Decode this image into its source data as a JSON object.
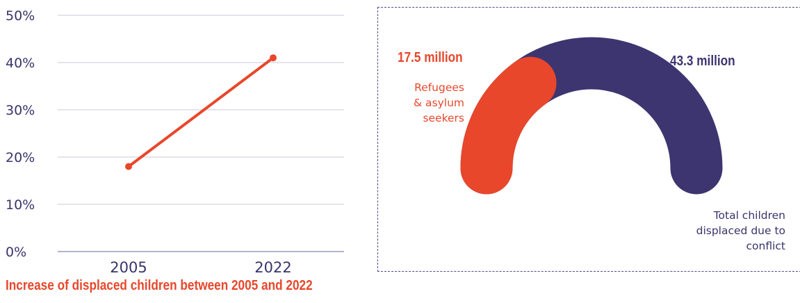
{
  "chart_data": [
    {
      "type": "line",
      "x": [
        "2005",
        "2022"
      ],
      "series": [
        {
          "values": [
            18,
            41
          ]
        }
      ],
      "yticks": [
        "0%",
        "10%",
        "20%",
        "30%",
        "40%",
        "50%"
      ],
      "ylim": [
        0,
        50
      ],
      "grid": true,
      "caption": "Increase of displaced children between 2005 and 2022",
      "colors": {
        "line": "#e8472b",
        "grid": "#c9c9dc",
        "text": "#38346b"
      }
    },
    {
      "type": "pie",
      "subtype": "semi-donut",
      "slices": [
        {
          "label": "Refugees & asylum seekers",
          "value": 17.5,
          "value_text": "17.5 million",
          "color": "#e8472b"
        },
        {
          "label": "Total children displaced due to conflict",
          "value": 43.3,
          "value_text": "43.3 million",
          "color": "#3d3570"
        }
      ]
    }
  ],
  "panel_text": {
    "refugees_value": "17.5 million",
    "refugees_label": "Refugees\n& asylum\nseekers",
    "total_value": "43.3 million",
    "total_label": "Total children\ndisplaced due to\nconflict"
  }
}
